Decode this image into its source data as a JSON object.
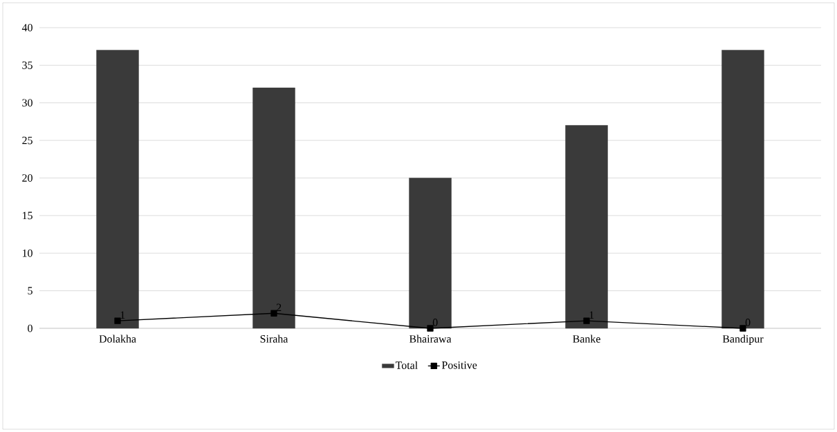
{
  "chart_data": {
    "type": "bar",
    "categories": [
      "Dolakha",
      "Siraha",
      "Bhairawa",
      "Banke",
      "Bandipur"
    ],
    "series": [
      {
        "name": "Total",
        "color": "#3a3a3a",
        "values": [
          37,
          32,
          20,
          27,
          37
        ]
      },
      {
        "name": "Positive",
        "type": "line",
        "color": "#000000",
        "marker": "square",
        "values": [
          1,
          2,
          0,
          1,
          0
        ],
        "value_labels": [
          "1",
          "2",
          "0",
          "1",
          "0"
        ]
      }
    ],
    "ylim": [
      0,
      40
    ],
    "yticks": [
      0,
      5,
      10,
      15,
      20,
      25,
      30,
      35,
      40
    ],
    "grid": "y",
    "legend": "bottom"
  }
}
